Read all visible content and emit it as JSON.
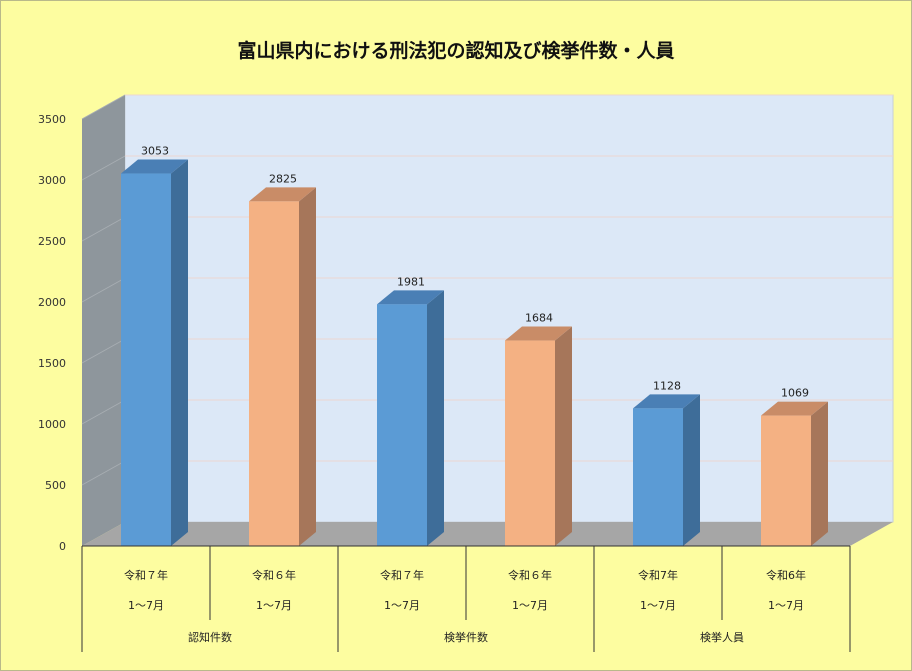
{
  "chart_data": {
    "type": "bar",
    "title": "富山県内における刑法犯の認知及び検挙件数・人員",
    "categories": [
      {
        "line1": "令和７年",
        "line2": "1～7月",
        "group": "認知件数"
      },
      {
        "line1": "令和６年",
        "line2": "1～7月",
        "group": "認知件数"
      },
      {
        "line1": "令和７年",
        "line2": "1～7月",
        "group": "検挙件数"
      },
      {
        "line1": "令和６年",
        "line2": "1～7月",
        "group": "検挙件数"
      },
      {
        "line1": "令和7年",
        "line2": "1～7月",
        "group": "検挙人員"
      },
      {
        "line1": "令和6年",
        "line2": "1～7月",
        "group": "検挙人員"
      }
    ],
    "groups": [
      "認知件数",
      "検挙件数",
      "検挙人員"
    ],
    "values": [
      3053,
      2825,
      1981,
      1684,
      1128,
      1069
    ],
    "bar_colors": [
      "#5b9bd5",
      "#f4b183",
      "#5b9bd5",
      "#f4b183",
      "#5b9bd5",
      "#f4b183"
    ],
    "yticks": [
      0,
      500,
      1000,
      1500,
      2000,
      2500,
      3000,
      3500
    ],
    "ylim": [
      0,
      3500
    ],
    "xlabel": "",
    "ylabel": "",
    "grid": true,
    "legend": "none",
    "style": "3d-column"
  },
  "colors": {
    "background": "#fdfda0",
    "back_wall": "#dce8f7",
    "side_wall": "#8e969c",
    "floor": "#a6a6a6",
    "blue_front": "#5b9bd5",
    "blue_side": "#3e6d99",
    "blue_top": "#4a7fb5",
    "orange_front": "#f4b183",
    "orange_side": "#a6765a",
    "orange_top": "#c98c67"
  }
}
